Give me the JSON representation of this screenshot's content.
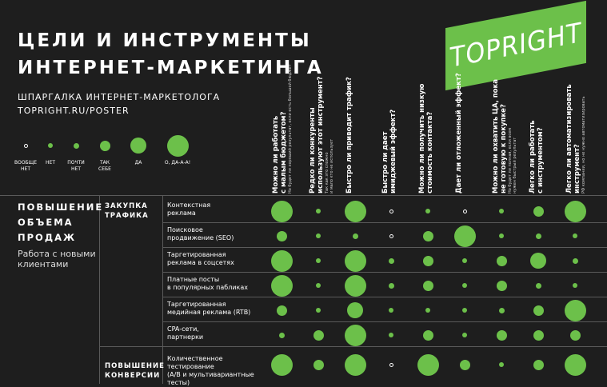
{
  "header": {
    "title_line1": "ЦЕЛИ И ИНСТРУМЕНТЫ",
    "title_line2": "ИНТЕРНЕТ-МАРКЕТИНГА",
    "subtitle_line1": "ШПАРГАЛКА ИНТЕРНЕТ-МАРКЕТОЛОГА",
    "subtitle_line2": "TOPRIGHT.RU/POSTER",
    "logo": "TOPRIGHT"
  },
  "colors": {
    "accent": "#6cc04a",
    "background": "#1e1e1e",
    "text": "#ffffff"
  },
  "legend": [
    {
      "label": "ВООБЩЕ\nНЕТ",
      "level": 0
    },
    {
      "label": "НЕТ",
      "level": 1
    },
    {
      "label": "ПОЧТИ\nНЕТ",
      "level": 2
    },
    {
      "label": "ТАК\nСЕБЕ",
      "level": 3
    },
    {
      "label": "ДА",
      "level": 4
    },
    {
      "label": "О, ДА-А-А!",
      "level": 5
    }
  ],
  "questions": [
    {
      "main": "Можно ли работать\nс малым бюджетом?",
      "sub": "Но будет ли хороший результат, если есть большой бюджет"
    },
    {
      "main": "Редко ли конкуренты\nиспользуют этот инструмент?",
      "sub": "Так как это сложно\nи мало кто не использует"
    },
    {
      "main": "Быстро ли приводит трафик?",
      "sub": ""
    },
    {
      "main": "Быстро ли дает\nимиджевый эффект?",
      "sub": ""
    },
    {
      "main": "Можно ли получить низкую\nстоимость контакта?",
      "sub": ""
    },
    {
      "main": "Дает ли отложенный эффект?",
      "sub": ""
    },
    {
      "main": "Можно ли охватить ЦА, пока\nне готовую к покупке?",
      "sub": "Но будет ли полная, если всем\nнужен быстрый результат"
    },
    {
      "main": "Легко ли работать\nс инструментом?",
      "sub": ""
    },
    {
      "main": "Легко ли автоматизировать\nинструмент?",
      "sub": "РФ компании, но не нужно автоматизировать"
    }
  ],
  "goals": [
    {
      "title": [
        "ПОВЫШЕНИЕ",
        "ОБЪЕМА",
        "ПРОДАЖ"
      ],
      "description": "Работа с новыми клиентами"
    }
  ],
  "categories": [
    {
      "label": [
        "ЗАКУПКА",
        "ТРАФИКА"
      ]
    },
    {
      "label": [
        "ПОВЫШЕНИЕ",
        "КОНВЕРСИИ"
      ]
    }
  ],
  "rows": [
    {
      "tool": "Контекстная\nреклама",
      "ratings": [
        5,
        1,
        5,
        0,
        1,
        0,
        1,
        3,
        5
      ]
    },
    {
      "tool": "Поисковое\nпродвижение (SEO)",
      "ratings": [
        3,
        1,
        2,
        0,
        3,
        5,
        1,
        2,
        1
      ]
    },
    {
      "tool": "Таргетированная\nреклама в соцсетях",
      "ratings": [
        5,
        1,
        5,
        2,
        3,
        1,
        3,
        4,
        2
      ]
    },
    {
      "tool": "Платные посты\nв популярных пабликах",
      "ratings": [
        5,
        1,
        5,
        2,
        3,
        1,
        3,
        2,
        1
      ]
    },
    {
      "tool": "Таргетированная\nмедийная реклама (RTB)",
      "ratings": [
        3,
        1,
        4,
        1,
        1,
        1,
        2,
        3,
        5
      ]
    },
    {
      "tool": "CPA-сети,\nпартнерки",
      "ratings": [
        2,
        3,
        5,
        1,
        3,
        1,
        3,
        3,
        3
      ]
    },
    {
      "tool": "Количественное тестирование\n(А/В и мультивариантные тесты)",
      "ratings": [
        5,
        3,
        5,
        0,
        5,
        3,
        1,
        3,
        5
      ]
    }
  ]
}
